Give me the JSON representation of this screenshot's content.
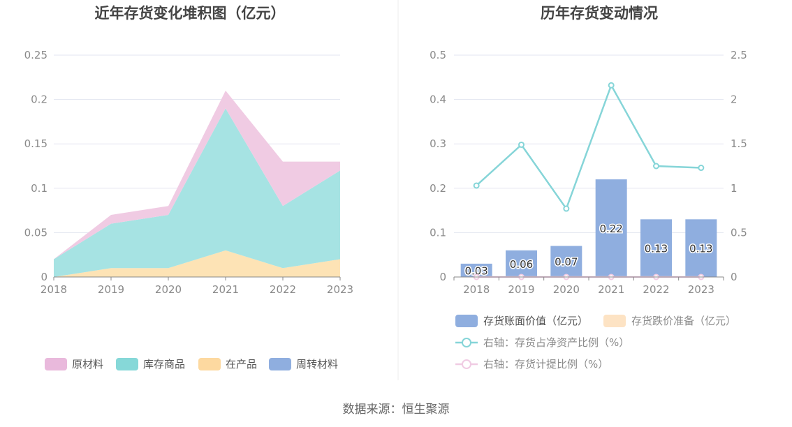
{
  "chart_data": [
    {
      "type": "area",
      "stacked": true,
      "title": "近年存货变化堆积图（亿元）",
      "categories": [
        "2018",
        "2019",
        "2020",
        "2021",
        "2022",
        "2023"
      ],
      "ylim": [
        0,
        0.25
      ],
      "yticks": [
        "0",
        "0.05",
        "0.1",
        "0.15",
        "0.2",
        "0.25"
      ],
      "grid": true,
      "legend_position": "bottom",
      "series": [
        {
          "name": "原材料",
          "values": [
            0.0,
            0.01,
            0.01,
            0.02,
            0.05,
            0.01
          ],
          "color": "#f0cbe3"
        },
        {
          "name": "库存商品",
          "values": [
            0.02,
            0.05,
            0.06,
            0.16,
            0.07,
            0.1
          ],
          "color": "#a6e3e3"
        },
        {
          "name": "在产品",
          "values": [
            0.0,
            0.01,
            0.01,
            0.03,
            0.01,
            0.02
          ],
          "color": "#fde3b5"
        },
        {
          "name": "周转材料",
          "values": [
            0,
            0,
            0,
            0,
            0,
            0
          ],
          "color": "#8faedf"
        }
      ],
      "legend_colors": [
        "#e9b9dc",
        "#86d8d8",
        "#fdd9a0",
        "#8faedf"
      ]
    },
    {
      "type": "bar",
      "title": "历年存货变动情况",
      "categories": [
        "2018",
        "2019",
        "2020",
        "2021",
        "2022",
        "2023"
      ],
      "ylim": [
        0,
        0.5
      ],
      "yticks": [
        "0",
        "0.1",
        "0.2",
        "0.3",
        "0.4",
        "0.5"
      ],
      "y2lim": [
        0,
        2.5
      ],
      "y2ticks": [
        "0",
        "0.5",
        "1",
        "1.5",
        "2",
        "2.5"
      ],
      "grid": true,
      "legend_position": "bottom",
      "bars": [
        {
          "name": "存货账面价值（亿元）",
          "values": [
            0.03,
            0.06,
            0.07,
            0.22,
            0.13,
            0.13
          ],
          "labels": [
            "0.03",
            "0.06",
            "0.07",
            "0.22",
            "0.13",
            "0.13"
          ],
          "color": "#8faedf"
        },
        {
          "name": "存货跌价准备（亿元）",
          "values": [
            0,
            0,
            0,
            0,
            0,
            0
          ],
          "color": "#fde3c4"
        }
      ],
      "lines": [
        {
          "name": "右轴：存货占净资产比例（%）",
          "values": [
            1.03,
            1.49,
            0.77,
            2.16,
            1.25,
            1.23
          ],
          "color": "#86d5d8"
        },
        {
          "name": "右轴：存货计提比例（%）",
          "values": [
            0,
            0,
            0,
            0,
            0,
            0
          ],
          "color": "#f0cbe3"
        }
      ]
    }
  ],
  "footer": {
    "source": "数据来源：恒生聚源"
  }
}
